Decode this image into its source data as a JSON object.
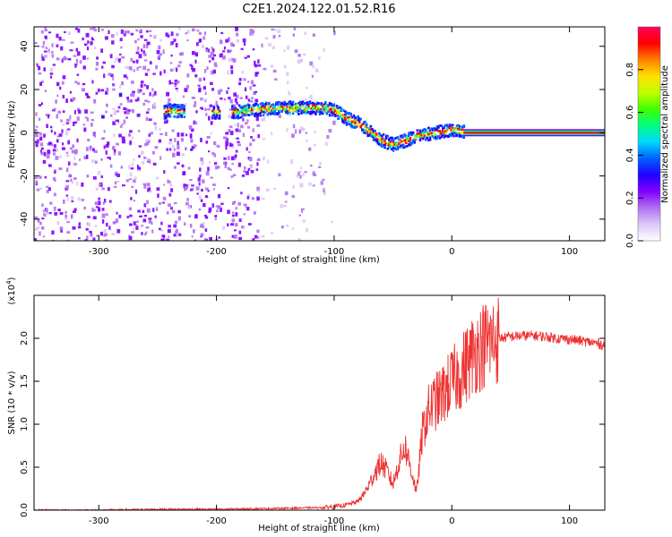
{
  "title": "C2E1.2024.122.01.52.R16",
  "chart_data": [
    {
      "type": "heatmap",
      "xlabel": "Height of straight line (km)",
      "ylabel": "Frequency (Hz)",
      "xlim": [
        -355,
        130
      ],
      "ylim": [
        -50,
        49
      ],
      "xticks": [
        -300,
        -200,
        -100,
        0,
        100
      ],
      "yticks": [
        -40,
        -20,
        0,
        20,
        40
      ],
      "colorbar": {
        "label": "Normalized spectral amplitude",
        "range": [
          0.0,
          1.0
        ],
        "ticks": [
          "0.0",
          "0.2",
          "0.4",
          "0.6",
          "0.8"
        ],
        "tick_values": [
          0.0,
          0.2,
          0.4,
          0.6,
          0.8
        ],
        "colors": [
          "#ffffff",
          "#ddc8f8",
          "#b070f0",
          "#8000ff",
          "#2000ff",
          "#0060ff",
          "#00d8ff",
          "#00ff80",
          "#40ff00",
          "#c0ff00",
          "#ffe000",
          "#ff8000",
          "#ff0000",
          "#ff0060"
        ]
      },
      "ridge": {
        "x": [
          -245,
          -238,
          -230,
          -200,
          -185,
          -170,
          -150,
          -130,
          -110,
          -100,
          -90,
          -80,
          -70,
          -60,
          -50,
          -40,
          -30,
          -20,
          -10,
          0,
          10,
          130
        ],
        "y": [
          10,
          11,
          10,
          10,
          10,
          11,
          12,
          12,
          12,
          11,
          7,
          5,
          1,
          -3,
          -5,
          -3,
          -1,
          0,
          1,
          2,
          1,
          0
        ]
      },
      "noise_extent_x": [
        -355,
        -100
      ]
    },
    {
      "type": "line",
      "xlabel": "Height of straight line (km)",
      "ylabel": "SNR (10 * v/v)",
      "y_multiplier": "(x10",
      "y_multiplier_exp": "4",
      "xlim": [
        -355,
        130
      ],
      "ylim": [
        0.0,
        2.5
      ],
      "xticks": [
        -300,
        -200,
        -100,
        0,
        100
      ],
      "yticks": [
        0.0,
        0.5,
        1.0,
        1.5,
        2.0
      ],
      "ytick_labels": [
        "0.0",
        "0.5",
        "1.0",
        "1.5",
        "2.0"
      ],
      "series": [
        {
          "color": "#ee3333",
          "x": [
            -355,
            -300,
            -250,
            -200,
            -150,
            -110,
            -100,
            -90,
            -80,
            -75,
            -70,
            -65,
            -60,
            -55,
            -50,
            -45,
            -40,
            -35,
            -30,
            -25,
            -20,
            -15,
            -10,
            -5,
            0,
            5,
            10,
            15,
            20,
            25,
            30,
            40,
            50,
            60,
            70,
            80,
            90,
            100,
            110,
            120,
            130
          ],
          "y": [
            0.0,
            0.0,
            0.01,
            0.01,
            0.02,
            0.03,
            0.04,
            0.06,
            0.1,
            0.18,
            0.3,
            0.45,
            0.55,
            0.45,
            0.3,
            0.55,
            0.75,
            0.5,
            0.2,
            0.9,
            1.15,
            1.25,
            1.3,
            1.4,
            1.5,
            1.55,
            1.65,
            1.75,
            1.85,
            1.9,
            1.95,
            2.0,
            2.02,
            2.03,
            2.03,
            2.02,
            2.0,
            1.99,
            1.97,
            1.95,
            1.92
          ]
        }
      ]
    }
  ]
}
